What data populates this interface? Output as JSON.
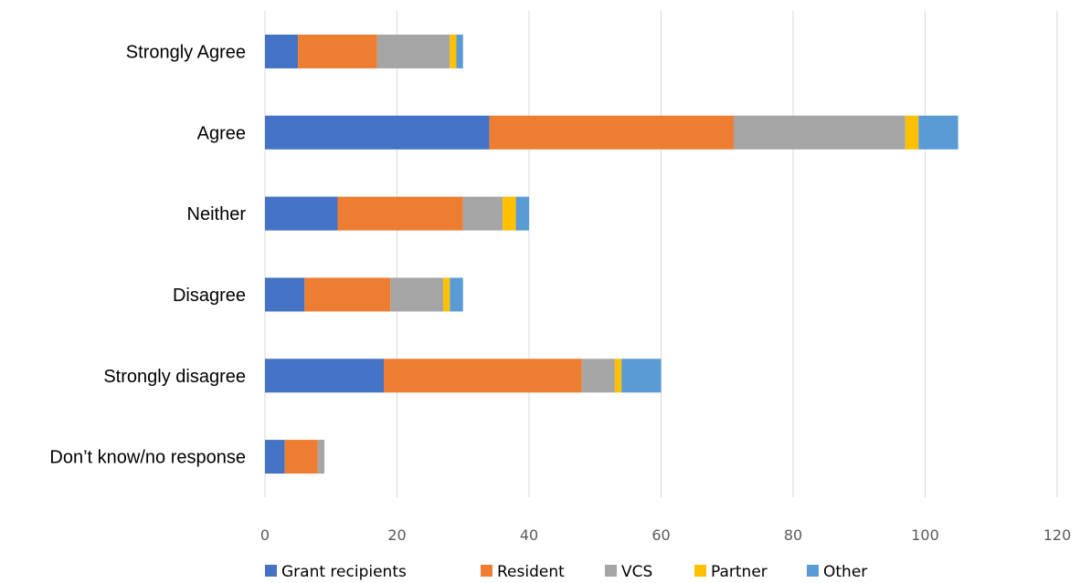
{
  "chart_data": {
    "type": "bar",
    "orientation": "horizontal",
    "stacked": true,
    "categories": [
      "Strongly Agree",
      "Agree",
      "Neither",
      "Disagree",
      "Strongly disagree",
      "Don’t know/no response"
    ],
    "series": [
      {
        "name": "Grant recipients",
        "color": "#4472C4",
        "values": [
          5,
          34,
          11,
          6,
          18,
          3
        ]
      },
      {
        "name": "Resident",
        "color": "#ED7D31",
        "values": [
          12,
          37,
          19,
          13,
          30,
          5
        ]
      },
      {
        "name": "VCS",
        "color": "#A5A5A5",
        "values": [
          11,
          26,
          6,
          8,
          5,
          1
        ]
      },
      {
        "name": "Partner",
        "color": "#FFC000",
        "values": [
          1,
          2,
          2,
          1,
          1,
          0
        ]
      },
      {
        "name": "Other",
        "color": "#5B9BD5",
        "values": [
          1,
          6,
          2,
          2,
          6,
          0
        ]
      }
    ],
    "xlim": [
      0,
      120
    ],
    "xticks": [
      0,
      20,
      40,
      60,
      80,
      100,
      120
    ],
    "grid": "vertical",
    "legend_position": "bottom",
    "title": "",
    "xlabel": "",
    "ylabel": ""
  }
}
